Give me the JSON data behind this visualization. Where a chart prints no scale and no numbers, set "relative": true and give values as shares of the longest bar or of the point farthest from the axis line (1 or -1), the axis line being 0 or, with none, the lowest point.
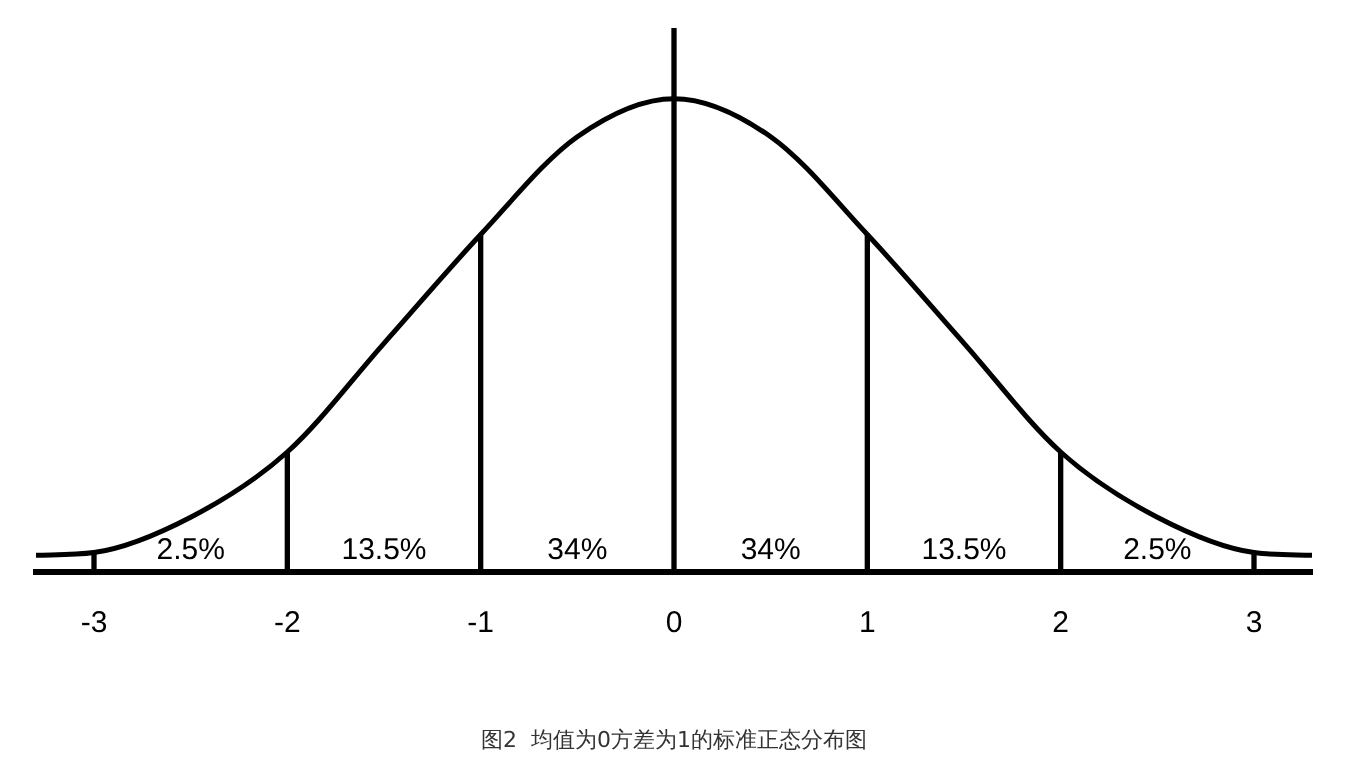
{
  "chart_data": {
    "type": "line",
    "title": "图2  均值为0方差为1的标准正态分布图",
    "relative": true,
    "xlim": [
      -3.3,
      3.3
    ],
    "xticks": [
      -3,
      -2,
      -1,
      0,
      1,
      2,
      3
    ],
    "grid": false,
    "legend": false,
    "marker": "none",
    "line_style": "solid",
    "series": [
      {
        "color": "#000000",
        "x": [
          -3.3,
          -3,
          -2.5,
          -2,
          -1.5,
          -1,
          -0.5,
          0,
          0.5,
          1,
          1.5,
          2,
          2.5,
          3,
          3.3
        ],
        "values": [
          0.03,
          0.035,
          0.1,
          0.22,
          0.42,
          0.62,
          0.8,
          0.87,
          0.8,
          0.62,
          0.42,
          0.22,
          0.1,
          0.035,
          0.03
        ]
      },
      {
        "type": "bar",
        "color": "#000000",
        "x": [
          -3,
          -2,
          -1,
          0,
          1,
          2,
          3
        ],
        "values": [
          0.035,
          0.22,
          0.62,
          1,
          0.62,
          0.22,
          0.035
        ]
      }
    ],
    "annotations": [
      "2.5%",
      "13.5%",
      "34%",
      "34%",
      "13.5%",
      "2.5%"
    ]
  }
}
